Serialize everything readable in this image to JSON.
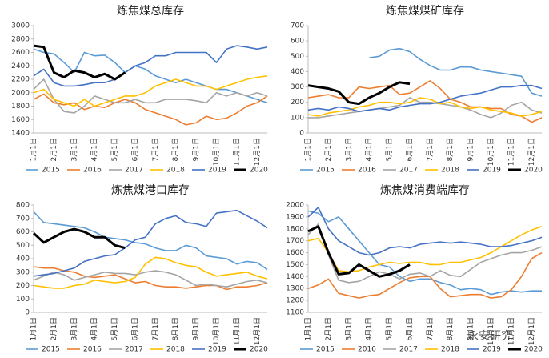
{
  "watermark": "永安研究",
  "chart_data": [
    {
      "type": "line",
      "title": "炼焦煤总库存",
      "categories": [
        "1月1日",
        null,
        "2月1日",
        null,
        "3月1日",
        null,
        "4月1日",
        null,
        "5月1日",
        null,
        "6月1日",
        null,
        "7月1日",
        null,
        "8月1日",
        null,
        "9月1日",
        null,
        "10月1日",
        null,
        "11月1日",
        null,
        "12月1日",
        null
      ],
      "ylim": [
        1400,
        3000
      ],
      "yticks": [
        1400,
        1600,
        1800,
        2000,
        2200,
        2400,
        2600,
        2800,
        3000
      ],
      "series": [
        {
          "name": "2015",
          "color": "#5b9bd5",
          "values": [
            2650,
            2600,
            2580,
            2450,
            2300,
            2600,
            2550,
            2560,
            2450,
            2300,
            2400,
            2350,
            2250,
            2200,
            2150,
            2200,
            2150,
            2100,
            2050,
            2050,
            2000,
            1950,
            1900,
            1850
          ]
        },
        {
          "name": "2016",
          "color": "#ed7d31",
          "values": [
            1900,
            1980,
            1850,
            1820,
            1850,
            1750,
            1800,
            1780,
            1850,
            1900,
            1850,
            1750,
            1700,
            1650,
            1600,
            1520,
            1550,
            1650,
            1600,
            1620,
            1700,
            1800,
            1850,
            1950
          ]
        },
        {
          "name": "2017",
          "color": "#a5a5a5",
          "values": [
            2050,
            2200,
            1900,
            1720,
            1700,
            1800,
            1950,
            1900,
            1850,
            1850,
            1900,
            1850,
            1850,
            1900,
            1900,
            1900,
            1880,
            1850,
            2000,
            1950,
            2000,
            1950,
            2000,
            1950
          ]
        },
        {
          "name": "2018",
          "color": "#ffc000",
          "values": [
            2000,
            2050,
            1900,
            1850,
            1800,
            1900,
            1800,
            1850,
            1900,
            1950,
            1950,
            2000,
            2100,
            2150,
            2200,
            2150,
            2100,
            2100,
            2050,
            2100,
            2150,
            2200,
            2230,
            2250
          ]
        },
        {
          "name": "2019",
          "color": "#4472c4",
          "values": [
            2250,
            2350,
            2150,
            2100,
            2100,
            2120,
            2150,
            2150,
            2200,
            2300,
            2400,
            2450,
            2550,
            2550,
            2600,
            2600,
            2600,
            2600,
            2450,
            2650,
            2700,
            2680,
            2650,
            2680
          ]
        },
        {
          "name": "2020",
          "color": "#000000",
          "values": [
            2700,
            2680,
            2300,
            2230,
            2330,
            2300,
            2230,
            2280,
            2200,
            2300,
            null,
            null,
            null,
            null,
            null,
            null,
            null,
            null,
            null,
            null,
            null,
            null,
            null,
            null
          ]
        }
      ]
    },
    {
      "type": "line",
      "title": "炼焦煤煤矿库存",
      "categories": [
        "1月1日",
        null,
        "2月1日",
        null,
        "3月1日",
        null,
        "4月1日",
        null,
        "5月1日",
        null,
        "6月1日",
        null,
        "7月1日",
        null,
        "8月1日",
        null,
        "9月1日",
        null,
        "10月1日",
        null,
        "11月1日",
        null,
        "12月1日",
        null
      ],
      "ylim": [
        0,
        700
      ],
      "yticks": [
        0,
        100,
        200,
        300,
        400,
        500,
        600,
        700
      ],
      "series": [
        {
          "name": "2015",
          "color": "#5b9bd5",
          "values": [
            null,
            null,
            null,
            null,
            null,
            null,
            490,
            500,
            540,
            550,
            530,
            480,
            440,
            410,
            410,
            430,
            430,
            410,
            400,
            390,
            380,
            370,
            260,
            240
          ]
        },
        {
          "name": "2016",
          "color": "#ed7d31",
          "values": [
            230,
            240,
            250,
            230,
            230,
            300,
            290,
            300,
            310,
            250,
            260,
            300,
            340,
            290,
            220,
            200,
            170,
            170,
            160,
            160,
            120,
            110,
            70,
            100
          ]
        },
        {
          "name": "2017",
          "color": "#a5a5a5",
          "values": [
            100,
            100,
            110,
            120,
            130,
            140,
            150,
            160,
            170,
            180,
            230,
            200,
            200,
            190,
            180,
            170,
            150,
            120,
            100,
            130,
            180,
            200,
            150,
            130
          ]
        },
        {
          "name": "2018",
          "color": "#ffc000",
          "values": [
            120,
            110,
            130,
            140,
            150,
            170,
            180,
            200,
            200,
            190,
            200,
            230,
            220,
            190,
            200,
            170,
            160,
            170,
            150,
            140,
            130,
            110,
            120,
            140
          ]
        },
        {
          "name": "2019",
          "color": "#4472c4",
          "values": [
            150,
            160,
            150,
            170,
            160,
            140,
            150,
            160,
            150,
            170,
            180,
            190,
            190,
            200,
            220,
            240,
            250,
            260,
            280,
            300,
            300,
            310,
            310,
            290
          ]
        },
        {
          "name": "2020",
          "color": "#000000",
          "values": [
            310,
            300,
            290,
            270,
            200,
            190,
            230,
            260,
            300,
            330,
            320,
            null,
            null,
            null,
            null,
            null,
            null,
            null,
            null,
            null,
            null,
            null,
            null,
            null
          ]
        }
      ]
    },
    {
      "type": "line",
      "title": "炼焦煤港口库存",
      "categories": [
        "1月1日",
        null,
        "2月1日",
        null,
        "3月1日",
        null,
        "4月1日",
        null,
        "5月1日",
        null,
        "6月1日",
        null,
        "7月1日",
        null,
        "8月1日",
        null,
        "9月1日",
        null,
        "10月1日",
        null,
        "11月1日",
        null,
        "12月1日",
        null
      ],
      "ylim": [
        0,
        800
      ],
      "yticks": [
        0,
        100,
        200,
        300,
        400,
        500,
        600,
        700,
        800
      ],
      "series": [
        {
          "name": "2015",
          "color": "#5b9bd5",
          "values": [
            750,
            670,
            660,
            650,
            640,
            630,
            600,
            560,
            550,
            540,
            520,
            510,
            480,
            460,
            460,
            500,
            480,
            420,
            410,
            400,
            360,
            380,
            370,
            320
          ]
        },
        {
          "name": "2016",
          "color": "#ed7d31",
          "values": [
            340,
            330,
            330,
            310,
            300,
            270,
            260,
            270,
            280,
            250,
            220,
            230,
            200,
            190,
            190,
            180,
            190,
            200,
            200,
            170,
            190,
            190,
            200,
            220
          ]
        },
        {
          "name": "2017",
          "color": "#a5a5a5",
          "values": [
            240,
            270,
            300,
            280,
            240,
            260,
            280,
            300,
            290,
            290,
            280,
            300,
            310,
            300,
            280,
            240,
            200,
            210,
            200,
            190,
            210,
            230,
            240,
            220
          ]
        },
        {
          "name": "2018",
          "color": "#ffc000",
          "values": [
            200,
            190,
            180,
            180,
            200,
            210,
            240,
            230,
            220,
            230,
            260,
            360,
            410,
            400,
            370,
            350,
            340,
            300,
            270,
            280,
            290,
            300,
            270,
            250
          ]
        },
        {
          "name": "2019",
          "color": "#4472c4",
          "values": [
            270,
            280,
            290,
            310,
            330,
            380,
            400,
            420,
            430,
            480,
            540,
            560,
            660,
            700,
            720,
            670,
            660,
            640,
            740,
            750,
            760,
            720,
            680,
            630
          ]
        },
        {
          "name": "2020",
          "color": "#000000",
          "values": [
            590,
            520,
            560,
            600,
            620,
            600,
            560,
            560,
            500,
            480,
            null,
            null,
            null,
            null,
            null,
            null,
            null,
            null,
            null,
            null,
            null,
            null,
            null,
            null
          ]
        }
      ]
    },
    {
      "type": "line",
      "title": "炼焦煤消费端库存",
      "categories": [
        "1月1日",
        null,
        "2月1日",
        null,
        "3月1日",
        null,
        "4月1日",
        null,
        "5月1日",
        null,
        "6月1日",
        null,
        "7月1日",
        null,
        "8月1日",
        null,
        "9月1日",
        null,
        "10月1日",
        null,
        "11月1日",
        null,
        "12月1日",
        null
      ],
      "ylim": [
        1100,
        2000
      ],
      "yticks": [
        1100,
        1200,
        1300,
        1400,
        1500,
        1600,
        1700,
        1800,
        1900,
        2000
      ],
      "series": [
        {
          "name": "2015",
          "color": "#5b9bd5",
          "values": [
            1950,
            1930,
            1860,
            1900,
            1800,
            1700,
            1600,
            1500,
            1480,
            1400,
            1360,
            1380,
            1380,
            1350,
            1330,
            1290,
            1300,
            1290,
            1250,
            1270,
            1280,
            1270,
            1280,
            1280
          ]
        },
        {
          "name": "2016",
          "color": "#ed7d31",
          "values": [
            1300,
            1330,
            1380,
            1260,
            1240,
            1220,
            1240,
            1250,
            1300,
            1350,
            1390,
            1400,
            1400,
            1300,
            1230,
            1240,
            1250,
            1250,
            1220,
            1230,
            1290,
            1400,
            1550,
            1600
          ]
        },
        {
          "name": "2017",
          "color": "#a5a5a5",
          "values": [
            1750,
            1840,
            1580,
            1370,
            1350,
            1360,
            1400,
            1440,
            1420,
            1380,
            1420,
            1430,
            1400,
            1450,
            1410,
            1400,
            1460,
            1520,
            1550,
            1580,
            1600,
            1600,
            1620,
            1650
          ]
        },
        {
          "name": "2018",
          "color": "#ffc000",
          "values": [
            1700,
            1720,
            1600,
            1450,
            1440,
            1450,
            1480,
            1500,
            1520,
            1510,
            1520,
            1520,
            1500,
            1500,
            1520,
            1520,
            1540,
            1560,
            1600,
            1650,
            1700,
            1750,
            1790,
            1820
          ]
        },
        {
          "name": "2019",
          "color": "#4472c4",
          "values": [
            1900,
            1980,
            1800,
            1700,
            1650,
            1600,
            1580,
            1600,
            1640,
            1650,
            1640,
            1670,
            1680,
            1690,
            1680,
            1690,
            1680,
            1670,
            1650,
            1650,
            1660,
            1680,
            1700,
            1730
          ]
        },
        {
          "name": "2020",
          "color": "#000000",
          "values": [
            1780,
            1820,
            1600,
            1420,
            1430,
            1500,
            1450,
            1400,
            1420,
            1450,
            1500,
            null,
            null,
            null,
            null,
            null,
            null,
            null,
            null,
            null,
            null,
            null,
            null,
            null
          ]
        }
      ]
    }
  ]
}
